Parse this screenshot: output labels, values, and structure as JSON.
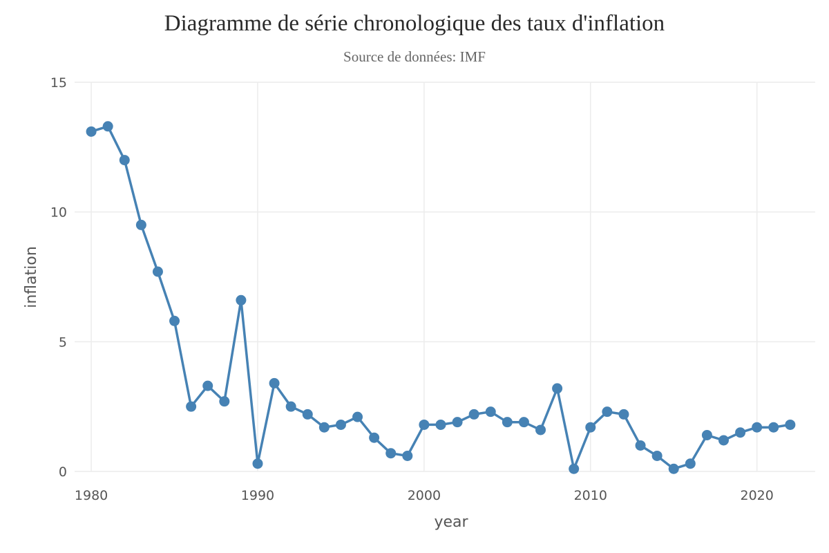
{
  "chart_data": {
    "type": "line",
    "title": "Diagramme de série chronologique des taux d'inflation",
    "subtitle": "Source de données: IMF",
    "xlabel": "year",
    "ylabel": "inflation",
    "xlim": [
      1979,
      2023.5
    ],
    "ylim": [
      0,
      15
    ],
    "x_ticks": [
      1980,
      1990,
      2000,
      2010,
      2020
    ],
    "y_ticks": [
      0,
      5,
      10,
      15
    ],
    "grid": true,
    "legend": "none",
    "color": "#4682b4",
    "series": [
      {
        "x": [
          1980,
          1981,
          1982,
          1983,
          1984,
          1985,
          1986,
          1987,
          1988,
          1989,
          1990,
          1991,
          1992,
          1993,
          1994,
          1995,
          1996,
          1997,
          1998,
          1999,
          2000,
          2001,
          2002,
          2003,
          2004,
          2005,
          2006,
          2007,
          2008,
          2009,
          2010,
          2011,
          2012,
          2013,
          2014,
          2015,
          2016,
          2017,
          2018,
          2019,
          2020,
          2021,
          2022
        ],
        "y": [
          13.1,
          13.3,
          12.0,
          9.5,
          7.7,
          5.8,
          2.5,
          3.3,
          2.7,
          6.6,
          0.3,
          3.4,
          2.5,
          2.2,
          1.7,
          1.8,
          2.1,
          1.3,
          0.7,
          0.6,
          1.8,
          1.8,
          1.9,
          2.2,
          2.3,
          1.9,
          1.9,
          1.6,
          3.2,
          0.1,
          1.7,
          2.3,
          2.2,
          1.0,
          0.6,
          0.1,
          0.3,
          1.4,
          1.2,
          1.5,
          1.7,
          1.7,
          1.8
        ]
      }
    ]
  }
}
